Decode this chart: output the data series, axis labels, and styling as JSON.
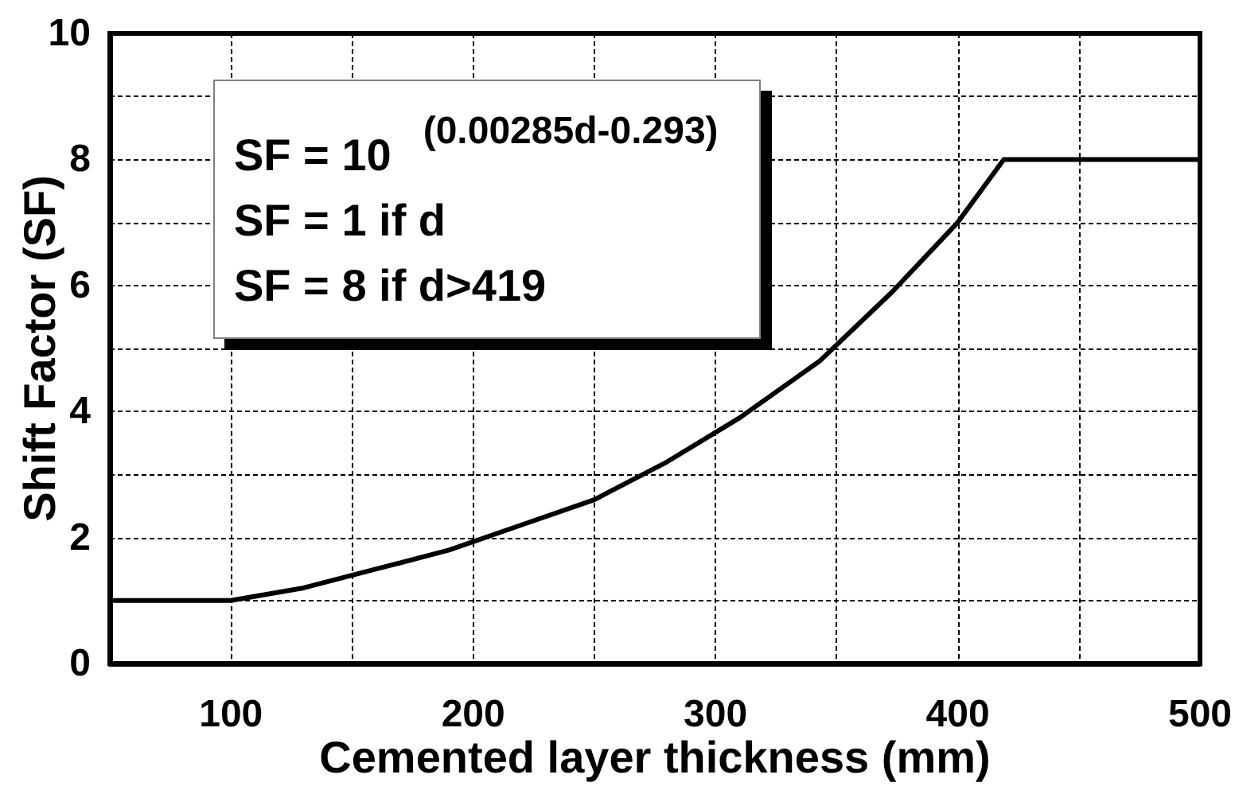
{
  "chart_data": {
    "type": "line",
    "xlabel": "Cemented layer thickness (mm)",
    "ylabel": "Shift Factor (SF)",
    "x": [
      50,
      100,
      130,
      160,
      190,
      220,
      250,
      280,
      310,
      343,
      373,
      400,
      419,
      500
    ],
    "values": [
      1,
      1,
      1.2,
      1.5,
      1.8,
      2.2,
      2.6,
      3.2,
      3.9,
      4.8,
      5.9,
      7.0,
      8,
      8
    ],
    "color": "#000000",
    "xlim": [
      50,
      500
    ],
    "xticks": [
      100,
      {
        "value": 150,
        "label": null
      },
      200,
      {
        "value": 250,
        "label": null
      },
      300,
      {
        "value": 350,
        "label": null
      },
      400,
      {
        "value": 450,
        "label": null
      },
      500
    ],
    "ylim": [
      0,
      10
    ],
    "yticks": [
      0,
      {
        "value": 1,
        "label": null
      },
      2,
      {
        "value": 3,
        "label": null
      },
      4,
      {
        "value": 5,
        "label": null
      },
      6,
      {
        "value": 7,
        "label": null
      },
      8,
      {
        "value": 9,
        "label": null
      },
      10
    ],
    "grid": true,
    "annotations": [
      "SF = 10$^{(0.00285d-0.293)}$",
      "SF = 1 if d",
      "SF = 8 if d>419"
    ]
  }
}
